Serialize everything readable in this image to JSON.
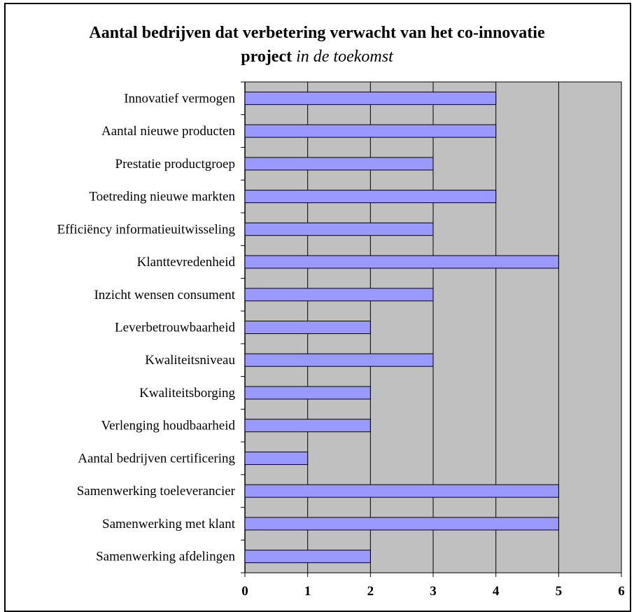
{
  "title": {
    "main": "Aantal bedrijven dat verbetering verwacht van het co-innovatie",
    "line2_bold": "project",
    "line2_italic": "in de toekomst"
  },
  "chart_data": {
    "type": "bar",
    "orientation": "horizontal",
    "categories": [
      "Innovatief vermogen",
      "Aantal nieuwe producten",
      "Prestatie productgroep",
      "Toetreding nieuwe markten",
      "Efficiëncy informatieuitwisseling",
      "Klanttevredenheid",
      "Inzicht wensen consument",
      "Leverbetrouwbaarheid",
      "Kwaliteitsniveau",
      "Kwaliteitsborging",
      "Verlenging houdbaarheid",
      "Aantal bedrijven certificering",
      "Samenwerking toeleverancier",
      "Samenwerking met klant",
      "Samenwerking afdelingen"
    ],
    "values": [
      4,
      4,
      3,
      4,
      3,
      5,
      3,
      2,
      3,
      2,
      2,
      1,
      5,
      5,
      2
    ],
    "xlim": [
      0,
      6
    ],
    "xticks": [
      0,
      1,
      2,
      3,
      4,
      5,
      6
    ],
    "grid": true,
    "colors": {
      "bar_fill": "#9999ff",
      "bar_stroke": "#000000",
      "plot_bg": "#c0c0c0",
      "gridline": "#000000"
    }
  }
}
